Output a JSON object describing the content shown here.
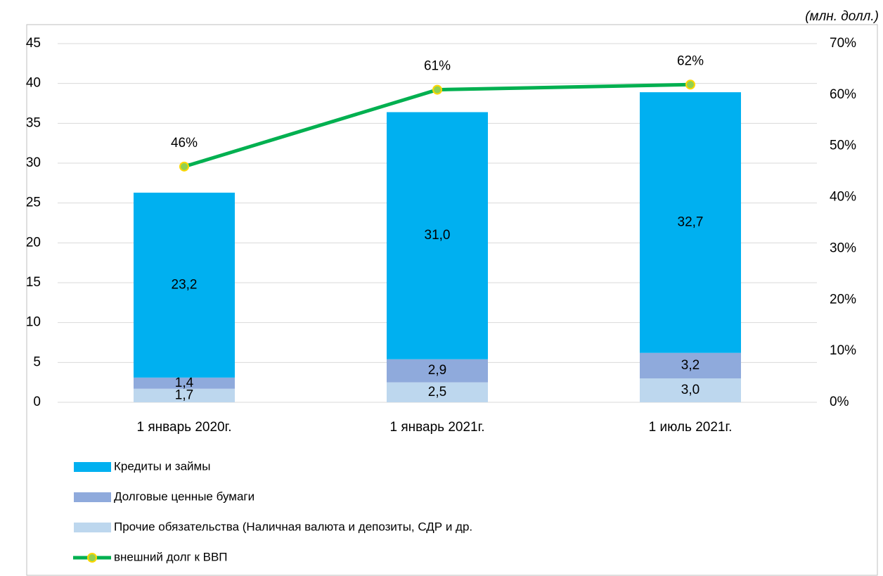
{
  "chart_data": {
    "type": "bar",
    "subtitle": "(млн. долл.)",
    "categories": [
      "1 январь 2020г.",
      "1 январь 2021г.",
      "1 июль 2021г."
    ],
    "series": [
      {
        "name": "Кредиты и займы",
        "color": "#00b0f0",
        "values": [
          23.2,
          31.0,
          32.7
        ],
        "value_labels": [
          "23,2",
          "31,0",
          "32,7"
        ]
      },
      {
        "name": "Долговые ценные бумаги",
        "color": "#8faadc",
        "values": [
          1.4,
          2.9,
          3.2
        ],
        "value_labels": [
          "1,4",
          "2,9",
          "3,2"
        ]
      },
      {
        "name": "Прочие обязательства (Наличная валюта и депозиты, СДР и др.",
        "color": "#bdd7ee",
        "values": [
          1.7,
          2.5,
          3.0
        ],
        "value_labels": [
          "1,7",
          "2,5",
          "3,0"
        ]
      },
      {
        "name": "внешний долг к ВВП",
        "type": "line",
        "axis": "y2",
        "color": "#00b050",
        "marker_color": "#92d050",
        "values": [
          46,
          61,
          62
        ],
        "value_labels": [
          "46%",
          "61%",
          "62%"
        ]
      }
    ],
    "ylim": [
      0,
      45
    ],
    "yticks": [
      0,
      5,
      10,
      15,
      20,
      25,
      30,
      35,
      40,
      45
    ],
    "y2lim": [
      0,
      70
    ],
    "y2ticks": [
      {
        "value": 0,
        "label": "0%"
      },
      {
        "value": 10,
        "label": "10%"
      },
      {
        "value": 20,
        "label": "20%"
      },
      {
        "value": 30,
        "label": "30%"
      },
      {
        "value": 40,
        "label": "40%"
      },
      {
        "value": 50,
        "label": "50%"
      },
      {
        "value": 60,
        "label": "60%"
      },
      {
        "value": 70,
        "label": "70%"
      }
    ],
    "grid": true
  }
}
